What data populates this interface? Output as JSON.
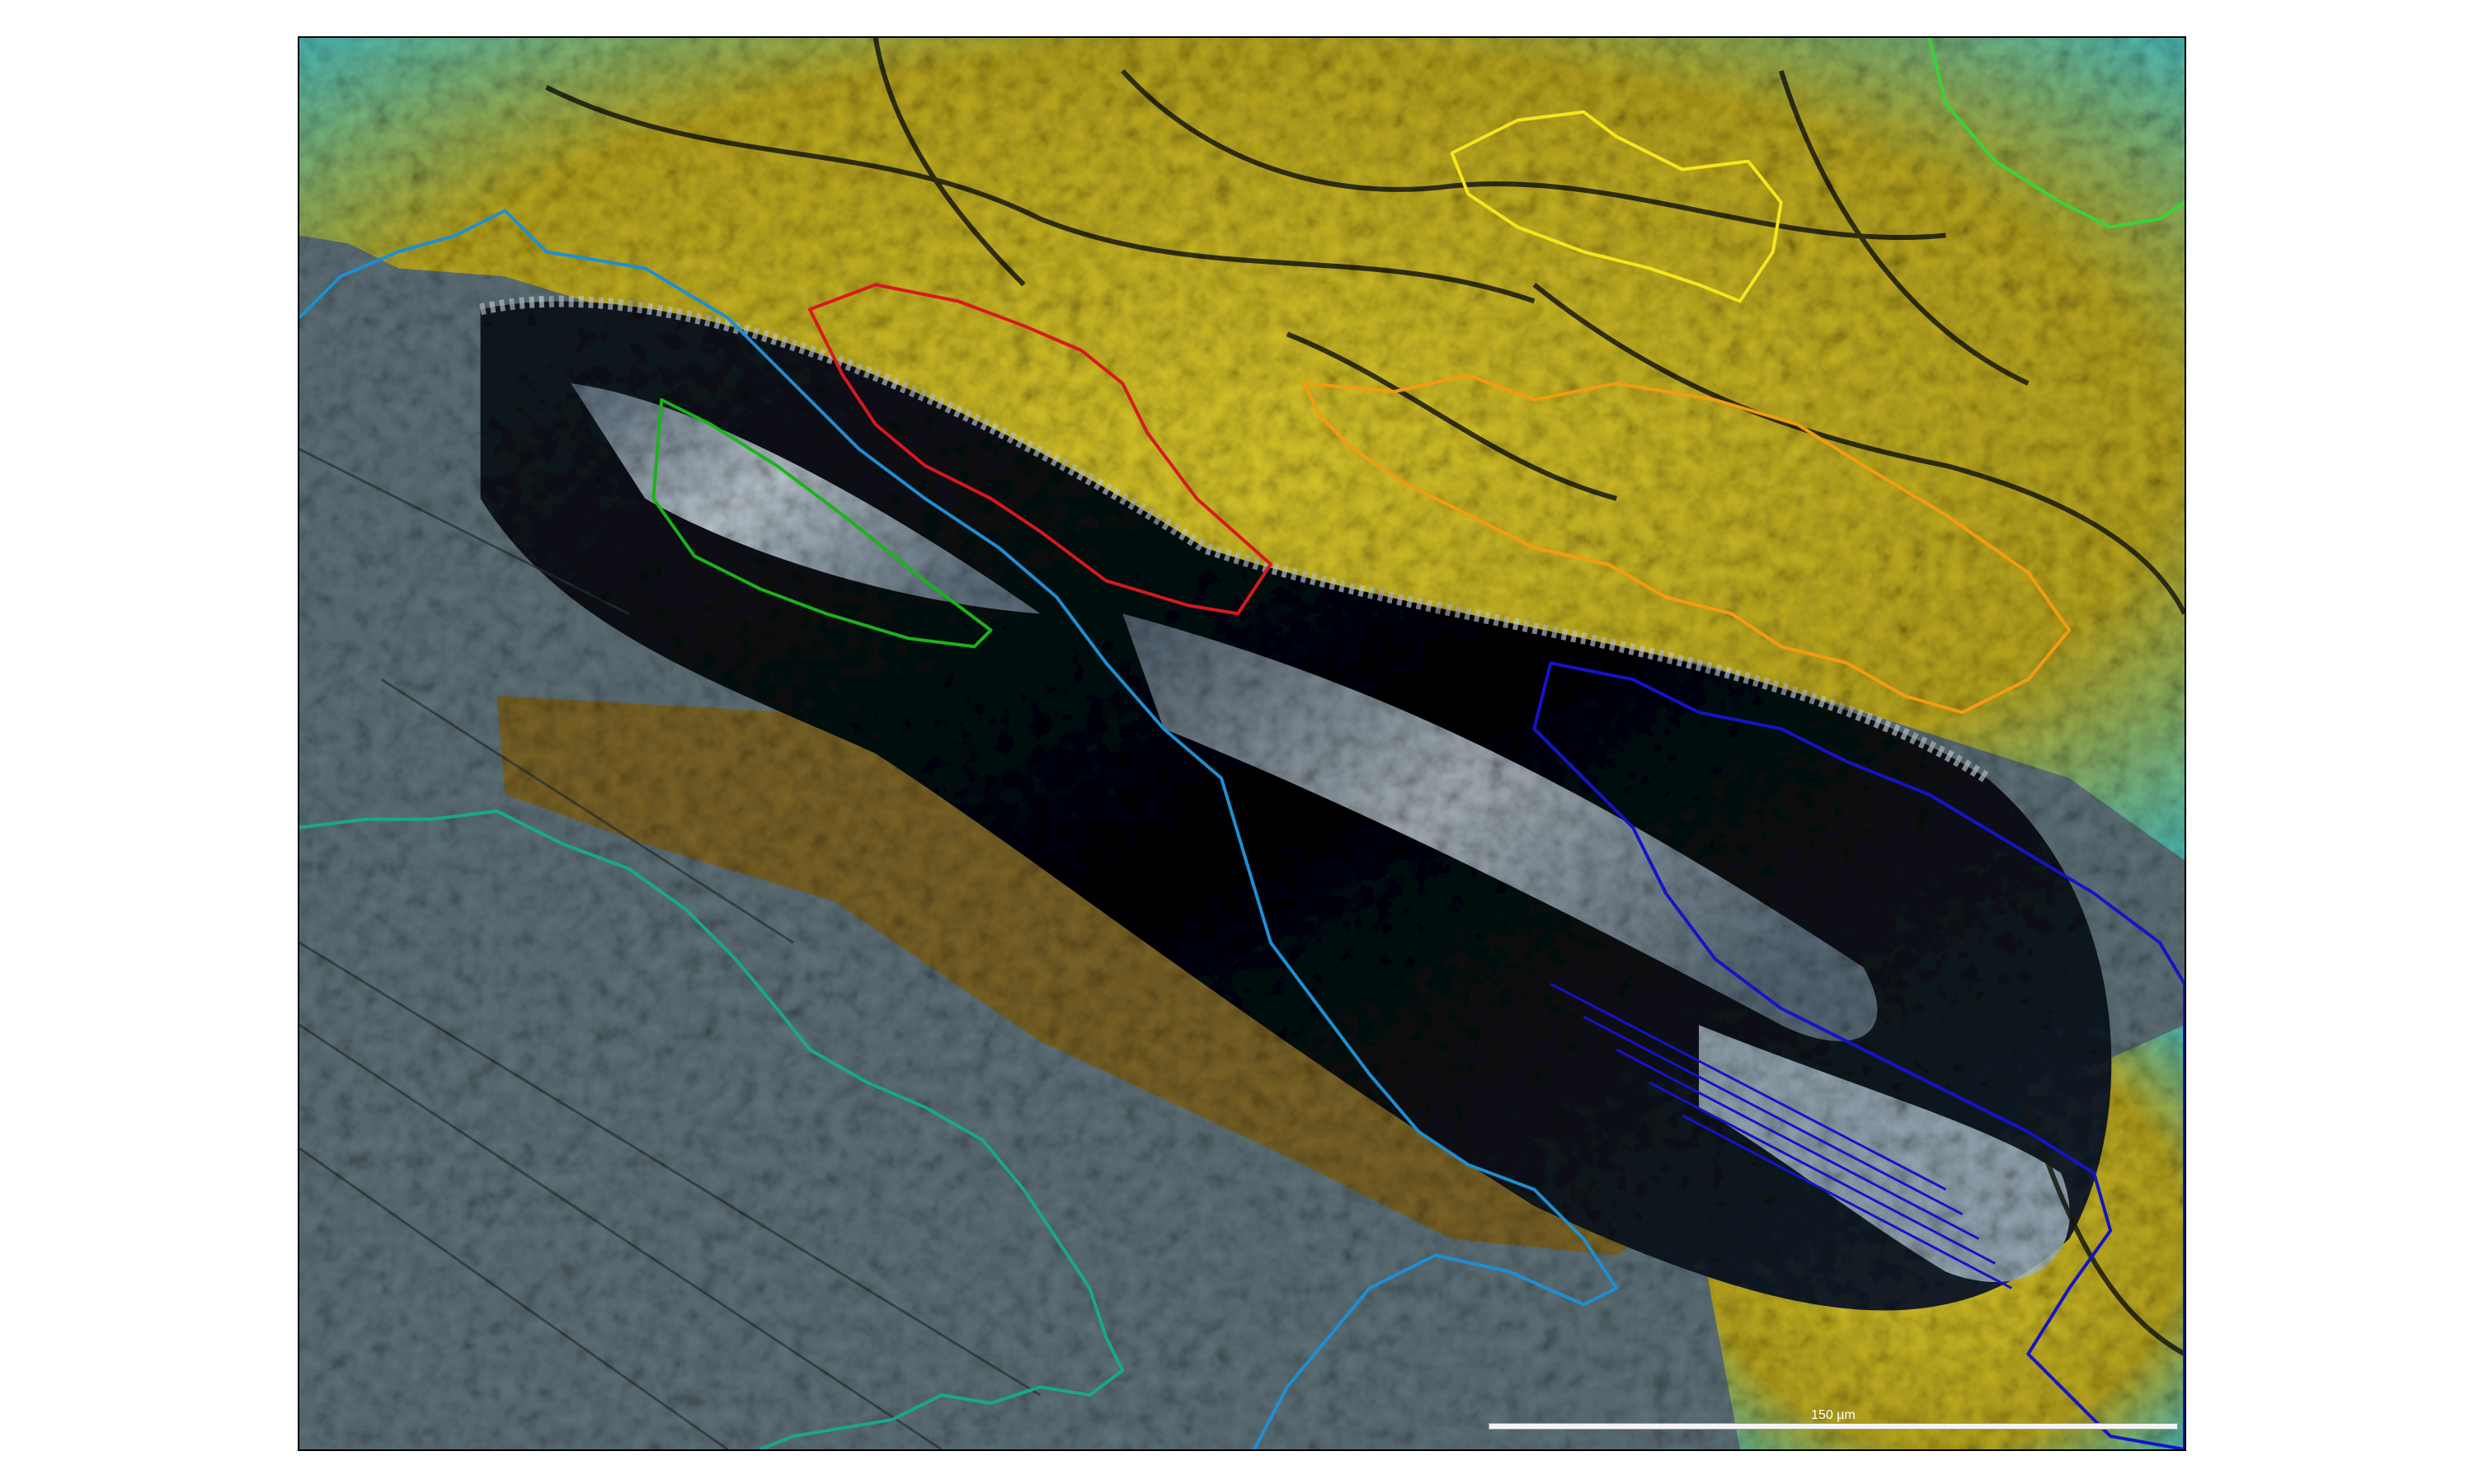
{
  "figure": {
    "scale_bar": {
      "label": "150 µm"
    }
  },
  "colors": {
    "background": "#ffffff",
    "frame": "#000000",
    "outline_red": "#d7191c",
    "outline_orange": "#f39c12",
    "outline_yellow": "#f5e61b",
    "outline_green": "#1bb31b",
    "outline_light_green": "#38d438",
    "outline_light_blue": "#1e8fd2",
    "outline_dark_blue": "#1414c8",
    "outline_teal": "#18a88c",
    "mineral_yellow": "#c8b828",
    "mineral_cyan": "#4ec0c0",
    "mineral_grey": "#6a7a80",
    "mineral_brown": "#8a6a2a",
    "mineral_black": "#050a12"
  }
}
